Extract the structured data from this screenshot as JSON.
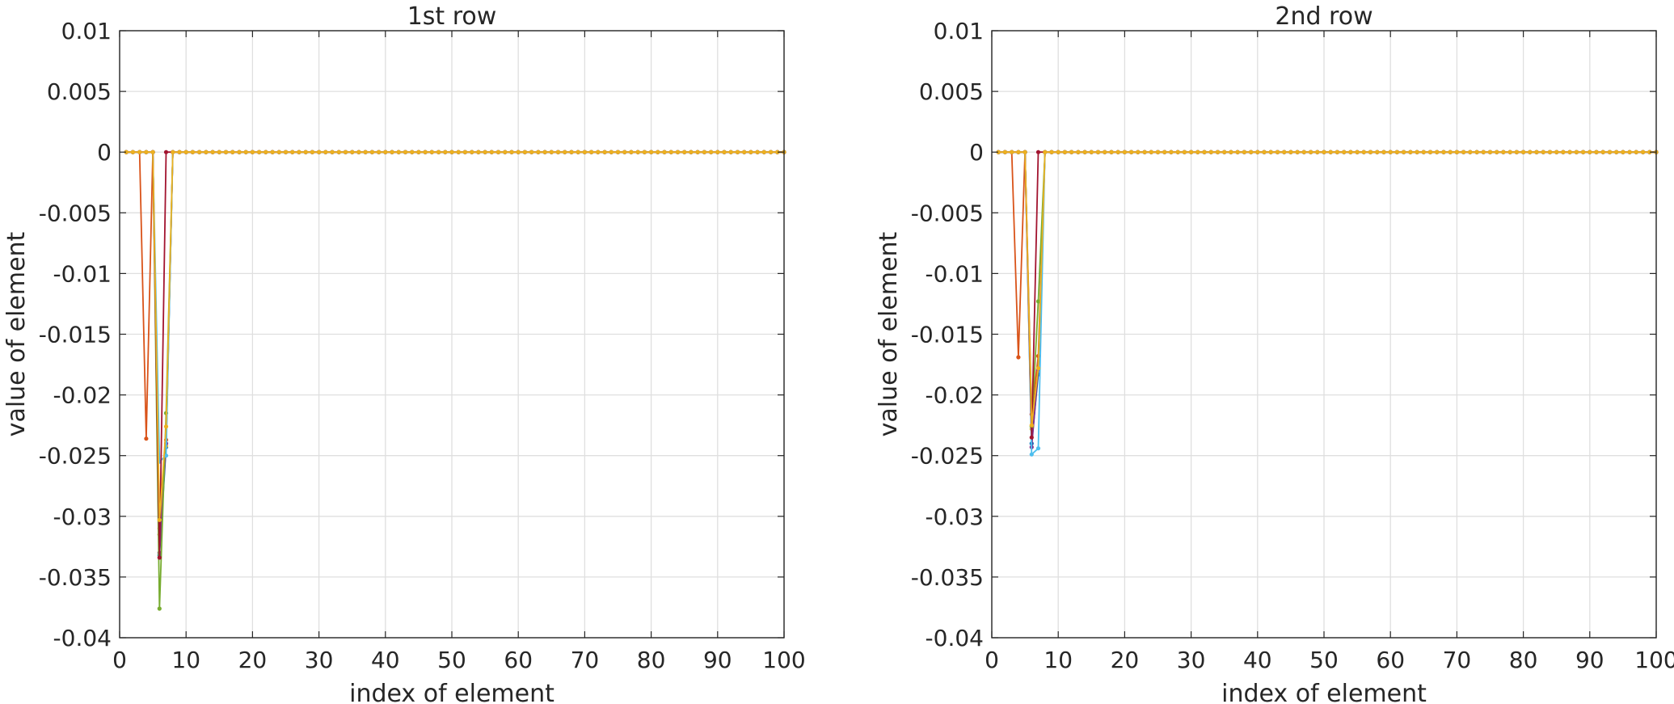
{
  "chart_data": [
    {
      "type": "line",
      "title": "1st row",
      "xlabel": "index of element",
      "ylabel": "value of element",
      "xlim": [
        0,
        100
      ],
      "ylim": [
        -0.04,
        0.01
      ],
      "xticks": [
        "0",
        "10",
        "20",
        "30",
        "40",
        "50",
        "60",
        "70",
        "80",
        "90",
        "100"
      ],
      "yticks": [
        "0.01",
        "0.005",
        "0",
        "-0.005",
        "-0.01",
        "-0.015",
        "-0.02",
        "-0.025",
        "-0.03",
        "-0.035",
        "-0.04"
      ],
      "grid": true,
      "x_length": 100,
      "series": [
        {
          "color": "#0072BD",
          "points": [
            [
              6,
              -0.0332
            ],
            [
              7,
              -0.0243
            ]
          ]
        },
        {
          "color": "#D95319",
          "points": [
            [
              4,
              -0.0236
            ],
            [
              6,
              -0.0315
            ],
            [
              7,
              -0.0237
            ]
          ]
        },
        {
          "color": "#EDB120",
          "points": [
            [
              6,
              -0.031
            ],
            [
              7,
              -0.0242
            ]
          ]
        },
        {
          "color": "#7E2F8E",
          "points": [
            [
              6,
              -0.033
            ],
            [
              7,
              -0.024
            ]
          ]
        },
        {
          "color": "#77AC30",
          "points": [
            [
              6,
              -0.0376
            ],
            [
              7,
              -0.0215
            ]
          ]
        },
        {
          "color": "#4DBEEE",
          "points": [
            [
              6,
              -0.0255
            ],
            [
              7,
              -0.025
            ]
          ]
        },
        {
          "color": "#A2142F",
          "points": [
            [
              6,
              -0.0334
            ],
            [
              7,
              0
            ]
          ]
        },
        {
          "color": "#EDB120",
          "points": [
            [
              5,
              0
            ],
            [
              6,
              -0.0303
            ],
            [
              7,
              -0.0226
            ]
          ]
        }
      ]
    },
    {
      "type": "line",
      "title": "2nd row",
      "xlabel": "index of element",
      "ylabel": "value of element",
      "xlim": [
        0,
        100
      ],
      "ylim": [
        -0.04,
        0.01
      ],
      "xticks": [
        "0",
        "10",
        "20",
        "30",
        "40",
        "50",
        "60",
        "70",
        "80",
        "90",
        "100"
      ],
      "yticks": [
        "0.01",
        "0.005",
        "0",
        "-0.005",
        "-0.01",
        "-0.015",
        "-0.02",
        "-0.025",
        "-0.03",
        "-0.035",
        "-0.04"
      ],
      "grid": true,
      "x_length": 100,
      "series": [
        {
          "color": "#0072BD",
          "points": [
            [
              6,
              -0.024
            ],
            [
              7,
              -0.0183
            ]
          ]
        },
        {
          "color": "#D95319",
          "points": [
            [
              4,
              -0.0169
            ],
            [
              6,
              -0.0216
            ],
            [
              7,
              -0.0168
            ]
          ]
        },
        {
          "color": "#EDB120",
          "points": [
            [
              6,
              -0.0228
            ],
            [
              7,
              -0.0178
            ]
          ]
        },
        {
          "color": "#7E2F8E",
          "points": [
            [
              6,
              -0.0243
            ],
            [
              7,
              -0.0179
            ]
          ]
        },
        {
          "color": "#77AC30",
          "points": [
            [
              6,
              -0.0226
            ],
            [
              7,
              -0.0123
            ]
          ]
        },
        {
          "color": "#4DBEEE",
          "points": [
            [
              6,
              -0.0249
            ],
            [
              7,
              -0.0244
            ]
          ]
        },
        {
          "color": "#A2142F",
          "points": [
            [
              6,
              -0.0235
            ],
            [
              7,
              0
            ]
          ]
        },
        {
          "color": "#EDB120",
          "points": [
            [
              5,
              0
            ],
            [
              6,
              -0.0225
            ],
            [
              7,
              -0.0178
            ]
          ]
        }
      ]
    }
  ]
}
